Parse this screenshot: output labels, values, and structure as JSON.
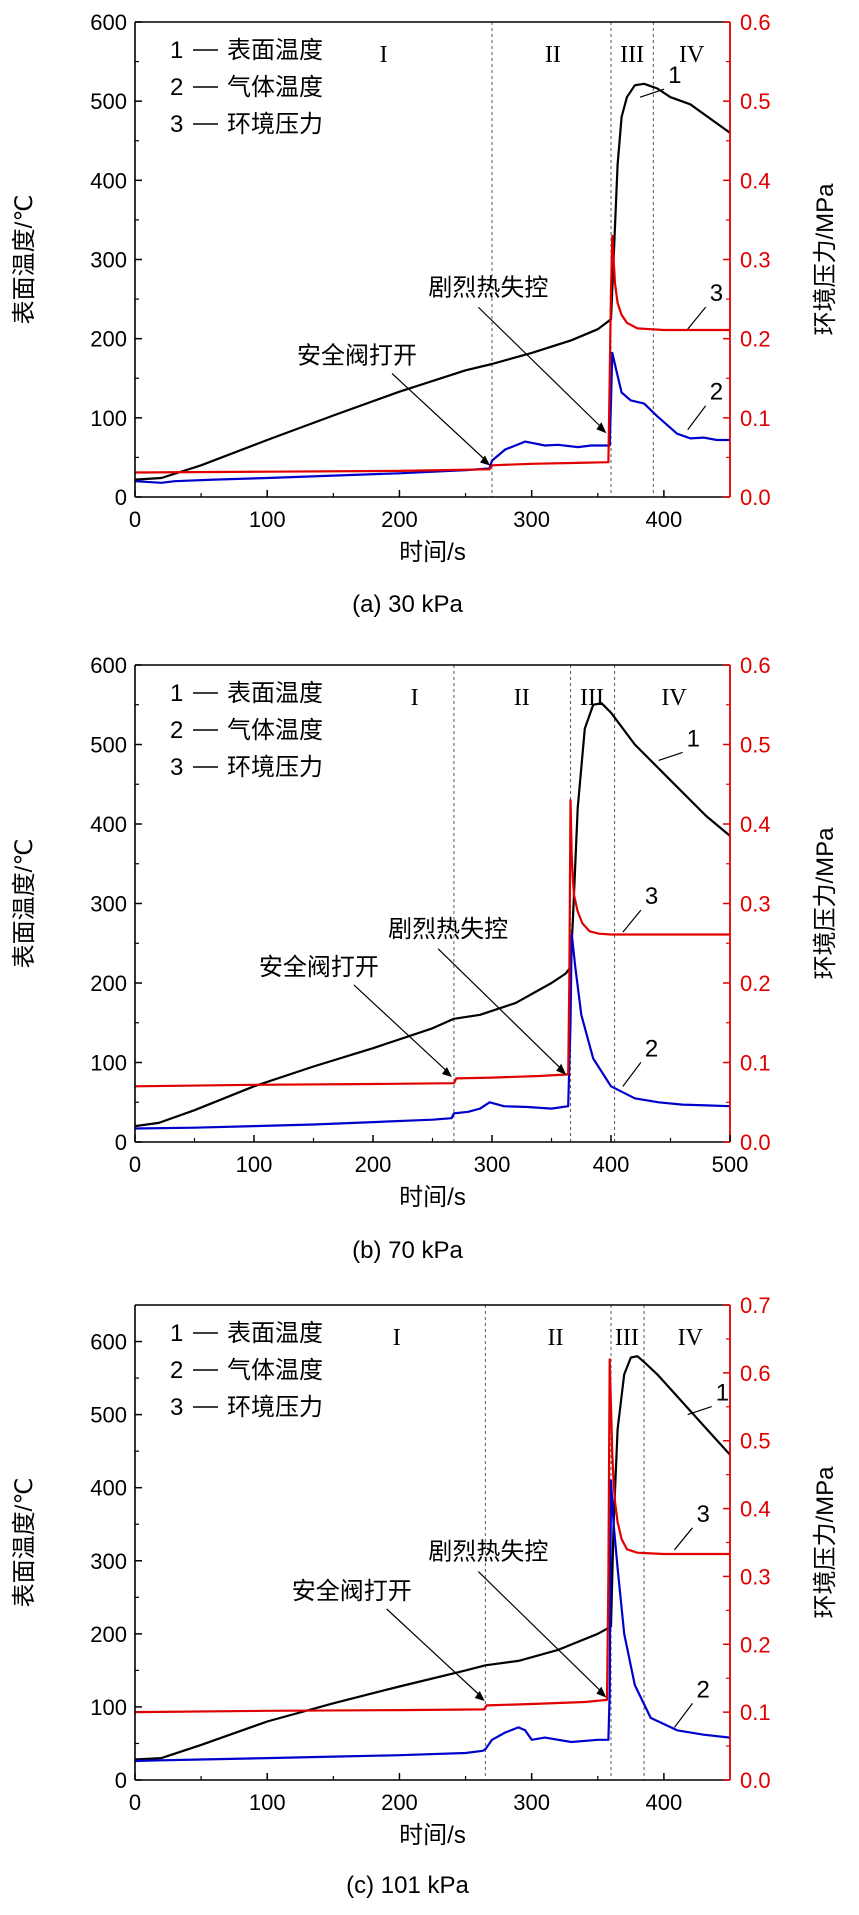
{
  "chart_data": [
    {
      "type": "line",
      "caption": "(a) 30 kPa",
      "xlabel": "时间/s",
      "ylabel": "表面温度/℃",
      "y2label": "环境压力/MPa",
      "xlim": [
        0,
        450
      ],
      "ylim": [
        0,
        600
      ],
      "y2lim": [
        0,
        0.6
      ],
      "xticks": [
        0,
        100,
        200,
        300,
        400
      ],
      "yticks": [
        0,
        100,
        200,
        300,
        400,
        500,
        600
      ],
      "y2ticks": [
        0.0,
        0.1,
        0.2,
        0.3,
        0.4,
        0.5,
        0.6
      ],
      "phase_boundaries": [
        270,
        360,
        392
      ],
      "phases": [
        {
          "label": "I",
          "x": 188
        },
        {
          "label": "II",
          "x": 316
        },
        {
          "label": "III",
          "x": 376
        },
        {
          "label": "IV",
          "x": 421
        }
      ],
      "legend": [
        {
          "key": "1",
          "text": "表面温度"
        },
        {
          "key": "2",
          "text": "气体温度"
        },
        {
          "key": "3",
          "text": "环境压力"
        }
      ],
      "series": [
        {
          "id": "1",
          "color": "#000000",
          "axis": "left",
          "x": [
            0,
            20,
            50,
            100,
            150,
            200,
            250,
            270,
            300,
            330,
            350,
            358,
            360,
            362,
            365,
            368,
            372,
            378,
            385,
            395,
            405,
            420,
            435,
            450
          ],
          "y": [
            22,
            24,
            40,
            72,
            103,
            133,
            160,
            168,
            182,
            198,
            212,
            222,
            225,
            300,
            420,
            480,
            505,
            520,
            522,
            516,
            505,
            496,
            478,
            460
          ]
        },
        {
          "id": "2",
          "color": "#0000cc",
          "axis": "left",
          "x": [
            0,
            20,
            30,
            60,
            100,
            150,
            200,
            250,
            268,
            270,
            280,
            295,
            310,
            320,
            335,
            345,
            355,
            359,
            360,
            361,
            364,
            368,
            375,
            385,
            395,
            410,
            420,
            430,
            440,
            450
          ],
          "y": [
            20,
            18,
            20,
            22,
            24,
            27,
            30,
            34,
            36,
            46,
            60,
            70,
            65,
            66,
            63,
            65,
            65,
            65,
            120,
            182,
            160,
            132,
            122,
            118,
            102,
            80,
            74,
            75,
            72,
            72
          ]
        },
        {
          "id": "3",
          "color": "#e00000",
          "axis": "right",
          "x": [
            0,
            100,
            200,
            268,
            270,
            300,
            330,
            358,
            359,
            360,
            361,
            362,
            363,
            365,
            368,
            372,
            380,
            390,
            400,
            420,
            450
          ],
          "y": [
            0.031,
            0.032,
            0.033,
            0.035,
            0.04,
            0.042,
            0.043,
            0.044,
            0.15,
            0.26,
            0.33,
            0.3,
            0.27,
            0.245,
            0.23,
            0.22,
            0.213,
            0.212,
            0.211,
            0.211,
            0.211
          ]
        }
      ],
      "annotations": [
        {
          "text": "安全阀打开",
          "at_x": 270,
          "at_y": 36
        },
        {
          "text": "剧烈热失控",
          "at_x": 358,
          "at_y": 78
        },
        {
          "text": "1",
          "at_x": 382,
          "at_y": 505
        },
        {
          "text": "3",
          "at_x": 418,
          "at_y": 212
        },
        {
          "text": "2",
          "at_x": 418,
          "at_y": 85
        }
      ]
    },
    {
      "type": "line",
      "caption": "(b) 70 kPa",
      "xlabel": "时间/s",
      "ylabel": "表面温度/℃",
      "y2label": "环境压力/MPa",
      "xlim": [
        0,
        500
      ],
      "ylim": [
        0,
        600
      ],
      "y2lim": [
        0,
        0.6
      ],
      "xticks": [
        0,
        100,
        200,
        300,
        400,
        500
      ],
      "yticks": [
        0,
        100,
        200,
        300,
        400,
        500,
        600
      ],
      "y2ticks": [
        0.0,
        0.1,
        0.2,
        0.3,
        0.4,
        0.5,
        0.6
      ],
      "phase_boundaries": [
        268,
        366,
        403
      ],
      "phases": [
        {
          "label": "I",
          "x": 235
        },
        {
          "label": "II",
          "x": 325
        },
        {
          "label": "III",
          "x": 384
        },
        {
          "label": "IV",
          "x": 453
        }
      ],
      "legend": [
        {
          "key": "1",
          "text": "表面温度"
        },
        {
          "key": "2",
          "text": "气体温度"
        },
        {
          "key": "3",
          "text": "环境压力"
        }
      ],
      "series": [
        {
          "id": "1",
          "color": "#000000",
          "axis": "left",
          "x": [
            0,
            20,
            50,
            100,
            150,
            200,
            250,
            268,
            290,
            320,
            350,
            362,
            366,
            368,
            372,
            378,
            385,
            392,
            400,
            420,
            450,
            480,
            500
          ],
          "y": [
            20,
            24,
            40,
            70,
            95,
            118,
            143,
            155,
            160,
            175,
            200,
            212,
            220,
            280,
            420,
            520,
            550,
            552,
            540,
            500,
            455,
            410,
            385
          ]
        },
        {
          "id": "2",
          "color": "#0000cc",
          "axis": "left",
          "x": [
            0,
            50,
            100,
            150,
            200,
            250,
            266,
            268,
            280,
            290,
            298,
            310,
            330,
            350,
            364,
            366,
            367,
            370,
            375,
            385,
            400,
            420,
            440,
            460,
            480,
            500
          ],
          "y": [
            17,
            18,
            20,
            22,
            25,
            28,
            30,
            36,
            38,
            42,
            50,
            45,
            44,
            42,
            45,
            150,
            262,
            220,
            160,
            105,
            70,
            55,
            50,
            47,
            46,
            45
          ]
        },
        {
          "id": "3",
          "color": "#e00000",
          "axis": "right",
          "x": [
            0,
            100,
            200,
            268,
            270,
            300,
            340,
            364,
            365,
            366,
            367,
            368,
            369,
            372,
            376,
            382,
            390,
            400,
            450,
            500
          ],
          "y": [
            0.07,
            0.072,
            0.073,
            0.074,
            0.08,
            0.081,
            0.083,
            0.085,
            0.2,
            0.43,
            0.36,
            0.33,
            0.31,
            0.29,
            0.275,
            0.265,
            0.262,
            0.261,
            0.261,
            0.261
          ]
        }
      ],
      "annotations": [
        {
          "text": "安全阀打开",
          "at_x": 268,
          "at_y": 78
        },
        {
          "text": "剧烈热失控",
          "at_x": 364,
          "at_y": 82
        },
        {
          "text": "1",
          "at_x": 440,
          "at_y": 480
        },
        {
          "text": "3",
          "at_x": 410,
          "at_y": 264
        },
        {
          "text": "2",
          "at_x": 410,
          "at_y": 70
        }
      ]
    },
    {
      "type": "line",
      "caption": "(c) 101 kPa",
      "xlabel": "时间/s",
      "ylabel": "表面温度/℃",
      "y2label": "环境压力/MPa",
      "xlim": [
        0,
        450
      ],
      "ylim": [
        0,
        650
      ],
      "y2lim": [
        0,
        0.7
      ],
      "xticks": [
        0,
        100,
        200,
        300,
        400
      ],
      "yticks": [
        0,
        100,
        200,
        300,
        400,
        500,
        600
      ],
      "y2ticks": [
        0.0,
        0.1,
        0.2,
        0.3,
        0.4,
        0.5,
        0.6,
        0.7
      ],
      "phase_boundaries": [
        265,
        360,
        385
      ],
      "phases": [
        {
          "label": "I",
          "x": 198
        },
        {
          "label": "II",
          "x": 318
        },
        {
          "label": "III",
          "x": 372
        },
        {
          "label": "IV",
          "x": 420
        }
      ],
      "legend": [
        {
          "key": "1",
          "text": "表面温度"
        },
        {
          "key": "2",
          "text": "气体温度"
        },
        {
          "key": "3",
          "text": "环境压力"
        }
      ],
      "series": [
        {
          "id": "1",
          "color": "#000000",
          "axis": "left",
          "x": [
            0,
            20,
            50,
            100,
            150,
            200,
            250,
            265,
            290,
            320,
            350,
            358,
            360,
            362,
            365,
            370,
            375,
            380,
            385,
            395,
            410,
            430,
            450
          ],
          "y": [
            28,
            30,
            48,
            80,
            105,
            128,
            150,
            157,
            163,
            178,
            200,
            208,
            210,
            350,
            480,
            555,
            578,
            580,
            572,
            555,
            525,
            485,
            445
          ]
        },
        {
          "id": "2",
          "color": "#0000cc",
          "axis": "left",
          "x": [
            0,
            20,
            50,
            100,
            150,
            200,
            250,
            263,
            265,
            270,
            280,
            290,
            295,
            300,
            310,
            330,
            350,
            358,
            359,
            360,
            362,
            365,
            370,
            378,
            390,
            410,
            430,
            450
          ],
          "y": [
            26,
            27,
            28,
            30,
            32,
            34,
            37,
            40,
            42,
            55,
            65,
            72,
            68,
            55,
            58,
            52,
            55,
            55,
            120,
            410,
            350,
            290,
            200,
            130,
            85,
            68,
            62,
            58
          ]
        },
        {
          "id": "3",
          "color": "#e00000",
          "axis": "right",
          "x": [
            0,
            100,
            200,
            264,
            266,
            300,
            340,
            357,
            358,
            359,
            360,
            361,
            362,
            363,
            365,
            368,
            372,
            380,
            390,
            400,
            450
          ],
          "y": [
            0.1,
            0.102,
            0.103,
            0.104,
            0.11,
            0.112,
            0.115,
            0.118,
            0.3,
            0.62,
            0.55,
            0.48,
            0.44,
            0.41,
            0.38,
            0.355,
            0.34,
            0.335,
            0.334,
            0.333,
            0.333
          ]
        }
      ],
      "annotations": [
        {
          "text": "安全阀打开",
          "at_x": 266,
          "at_y": 104
        },
        {
          "text": "剧烈热失控",
          "at_x": 358,
          "at_y": 110
        },
        {
          "text": "1",
          "at_x": 418,
          "at_y": 500
        },
        {
          "text": "3",
          "at_x": 408,
          "at_y": 315
        },
        {
          "text": "2",
          "at_x": 408,
          "at_y": 72
        }
      ]
    }
  ]
}
